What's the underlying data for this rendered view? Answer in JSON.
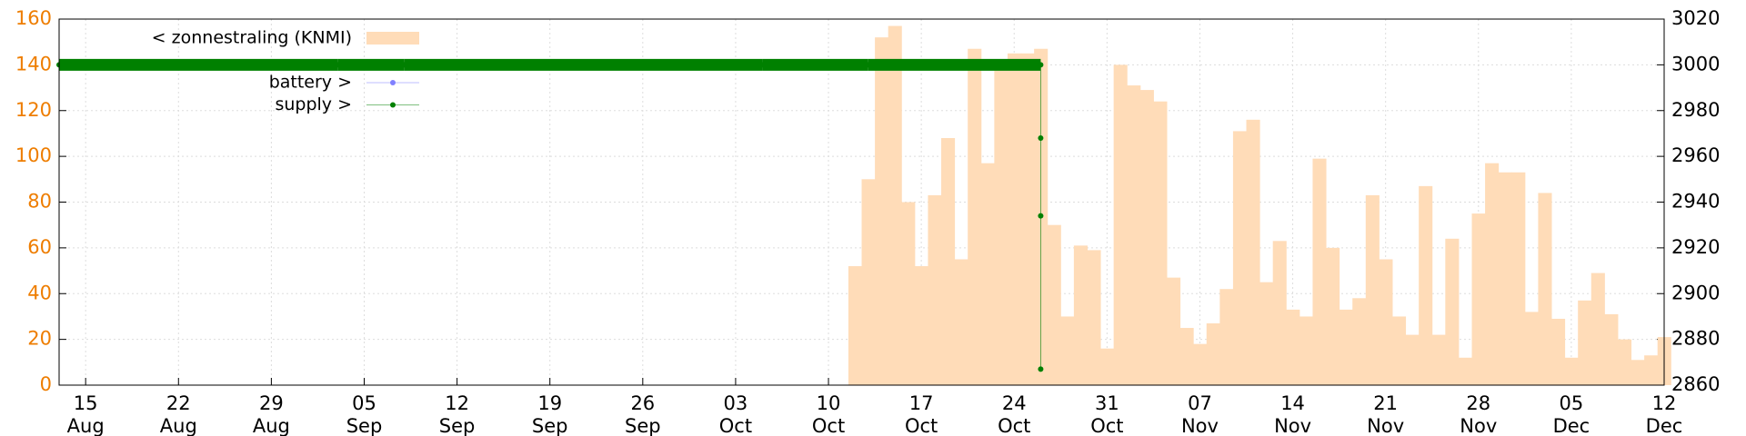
{
  "chart_data": {
    "type": "bar",
    "xlim": [
      "08-13",
      "12-12"
    ],
    "xticks": [
      {
        "value": "08-15",
        "label": [
          "15",
          "Aug"
        ]
      },
      {
        "value": "08-22",
        "label": [
          "22",
          "Aug"
        ]
      },
      {
        "value": "08-29",
        "label": [
          "29",
          "Aug"
        ]
      },
      {
        "value": "09-05",
        "label": [
          "05",
          "Sep"
        ]
      },
      {
        "value": "09-12",
        "label": [
          "12",
          "Sep"
        ]
      },
      {
        "value": "09-19",
        "label": [
          "19",
          "Sep"
        ]
      },
      {
        "value": "09-26",
        "label": [
          "26",
          "Sep"
        ]
      },
      {
        "value": "10-03",
        "label": [
          "03",
          "Oct"
        ]
      },
      {
        "value": "10-10",
        "label": [
          "10",
          "Oct"
        ]
      },
      {
        "value": "10-17",
        "label": [
          "17",
          "Oct"
        ]
      },
      {
        "value": "10-24",
        "label": [
          "24",
          "Oct"
        ]
      },
      {
        "value": "10-31",
        "label": [
          "31",
          "Oct"
        ]
      },
      {
        "value": "11-07",
        "label": [
          "07",
          "Nov"
        ]
      },
      {
        "value": "11-14",
        "label": [
          "14",
          "Nov"
        ]
      },
      {
        "value": "11-21",
        "label": [
          "21",
          "Nov"
        ]
      },
      {
        "value": "11-28",
        "label": [
          "28",
          "Nov"
        ]
      },
      {
        "value": "12-05",
        "label": [
          "05",
          "Dec"
        ]
      },
      {
        "value": "12-12",
        "label": [
          "12",
          "Dec"
        ]
      }
    ],
    "ylim": [
      0,
      160
    ],
    "yticks": [
      0,
      20,
      40,
      60,
      80,
      100,
      120,
      140,
      160
    ],
    "y2lim": [
      2860,
      3020
    ],
    "y2ticks": [
      2860,
      2880,
      2900,
      2920,
      2940,
      2960,
      2980,
      3000,
      3020
    ],
    "grid": true,
    "legend": "upper left",
    "series": [
      {
        "name": "< zonnestraling (KNMI)",
        "color": "#ffdcb8",
        "x": [
          "10-12",
          "10-13",
          "10-14",
          "10-15",
          "10-16",
          "10-17",
          "10-18",
          "10-19",
          "10-20",
          "10-21",
          "10-22",
          "10-23",
          "10-24",
          "10-25",
          "10-26",
          "10-27",
          "10-28",
          "10-29",
          "10-30",
          "10-31",
          "11-01",
          "11-02",
          "11-03",
          "11-04",
          "11-05",
          "11-06",
          "11-07",
          "11-08",
          "11-09",
          "11-10",
          "11-11",
          "11-12",
          "11-13",
          "11-14",
          "11-15",
          "11-16",
          "11-17",
          "11-18",
          "11-19",
          "11-20",
          "11-21",
          "11-22",
          "11-23",
          "11-24",
          "11-25",
          "11-26",
          "11-27",
          "11-28",
          "11-29",
          "11-30",
          "12-01",
          "12-02",
          "12-03",
          "12-04",
          "12-05",
          "12-06",
          "12-07",
          "12-08",
          "12-09",
          "12-10",
          "12-11",
          "12-12"
        ],
        "values": [
          52,
          90,
          152,
          157,
          80,
          52,
          83,
          108,
          55,
          147,
          97,
          140,
          145,
          145,
          147,
          70,
          30,
          61,
          59,
          16,
          140,
          131,
          129,
          124,
          47,
          25,
          18,
          27,
          42,
          111,
          116,
          45,
          63,
          33,
          30,
          99,
          60,
          33,
          38,
          83,
          55,
          30,
          22,
          87,
          22,
          64,
          12,
          75,
          97,
          93,
          93,
          32,
          84,
          29,
          12,
          37,
          49,
          31,
          20,
          11,
          13,
          21
        ]
      },
      {
        "name": "battery >",
        "color": "#8080ff",
        "axis": "y2",
        "x": [],
        "values": []
      },
      {
        "name": "supply >",
        "color": "#008000",
        "axis": "y2",
        "x": [
          "08-13",
          "09-03",
          "09-08",
          "10-05",
          "10-13",
          "10-26",
          "10-26",
          "10-26",
          "10-26"
        ],
        "values": [
          3000,
          3000,
          3000,
          3000,
          3000,
          3000,
          2968,
          2934,
          2867
        ]
      }
    ]
  }
}
